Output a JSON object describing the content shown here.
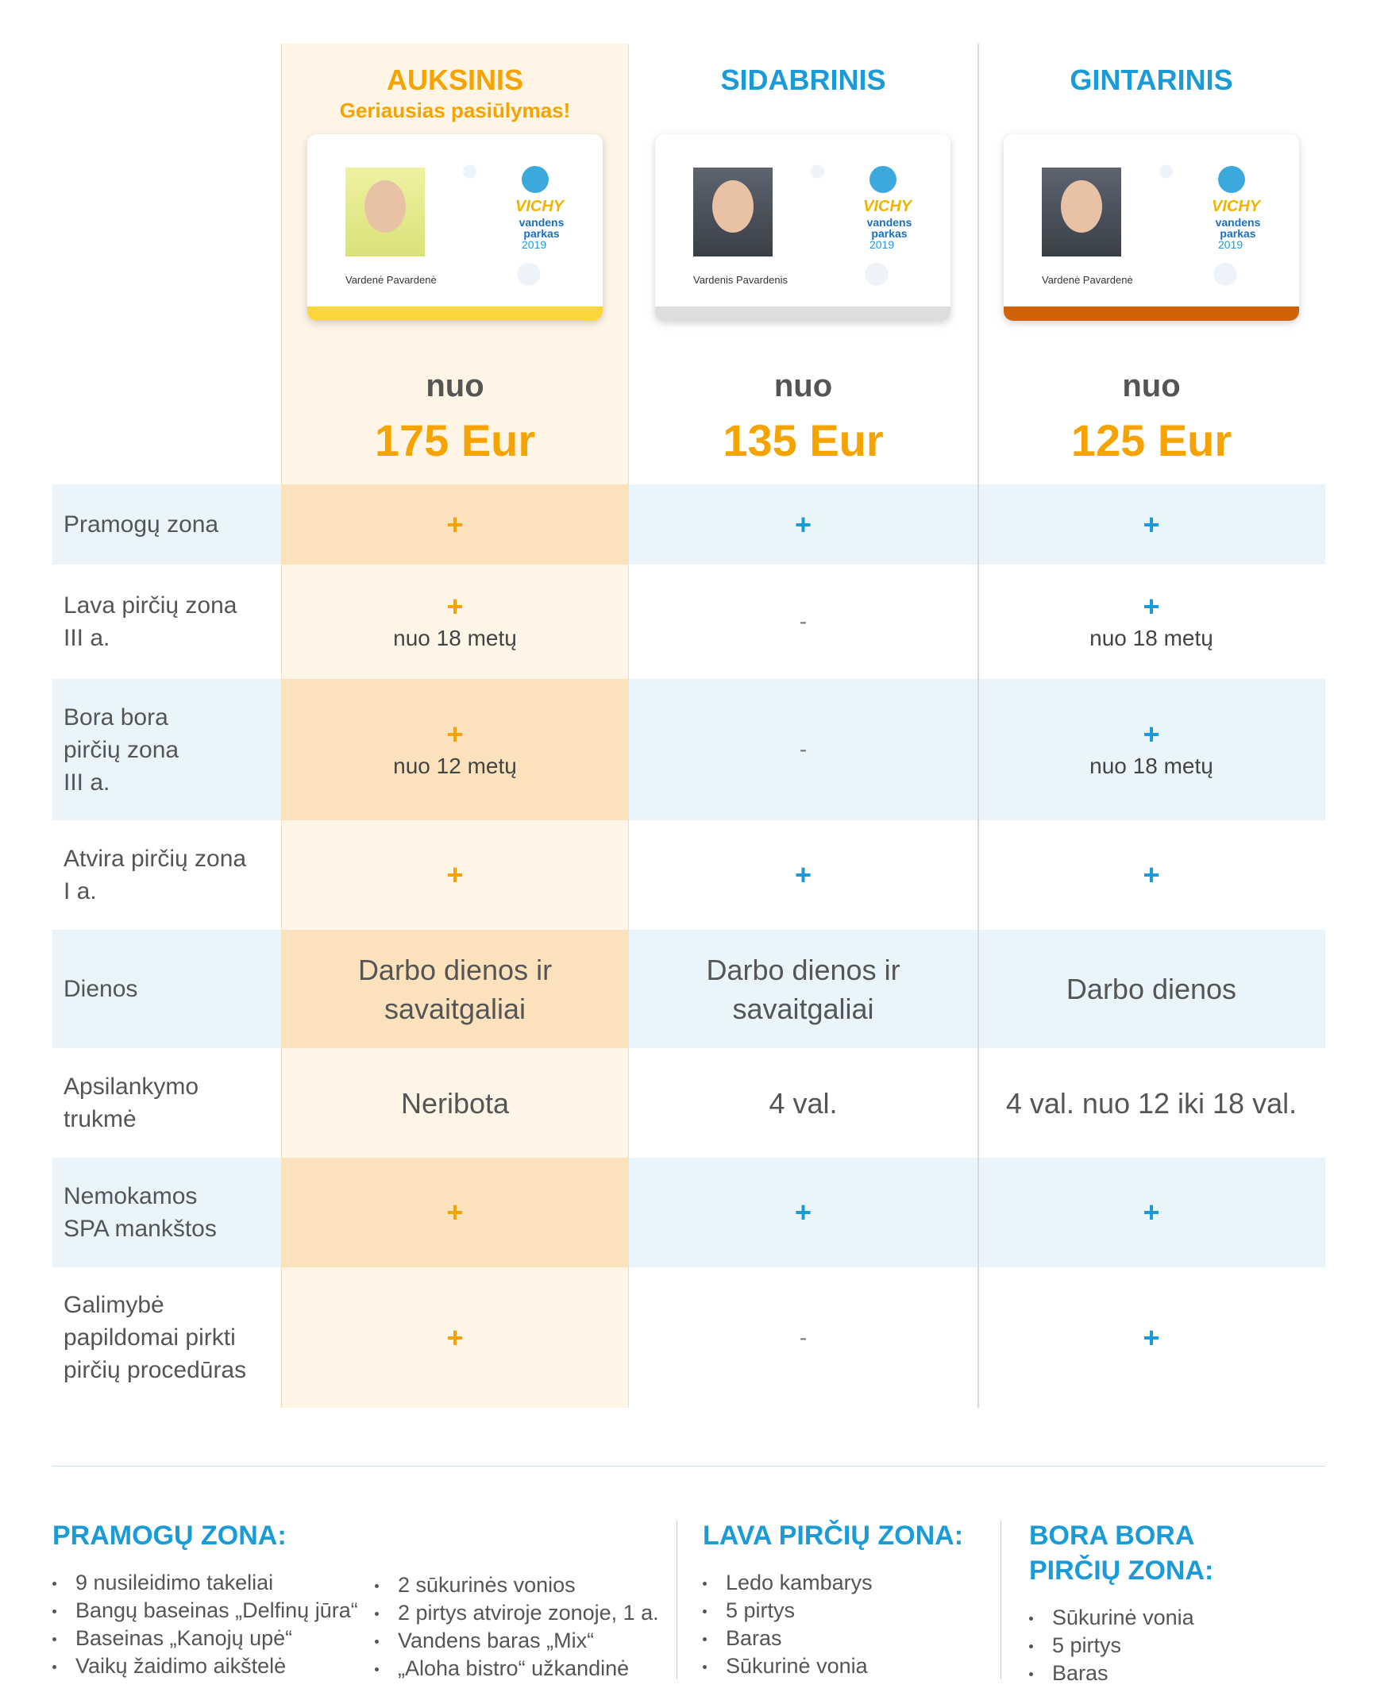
{
  "plans": [
    {
      "name": "AUKSINIS",
      "subtitle": "Geriausias pasiūlymas!",
      "card_name": "Vardenė Pavardenė",
      "price_prefix": "nuo",
      "price": "175 Eur",
      "stripe_color": "#fad53c"
    },
    {
      "name": "SIDABRINIS",
      "card_name": "Vardenis Pavardenis",
      "price_prefix": "nuo",
      "price": "135 Eur",
      "stripe_color": "#dddddd"
    },
    {
      "name": "GINTARINIS",
      "card_name": "Vardenė Pavardenė",
      "price_prefix": "nuo",
      "price": "125 Eur",
      "stripe_color": "#d0620a"
    }
  ],
  "card_logo": {
    "top": "VICHY",
    "bottom": "vandens parkas",
    "year": "2019"
  },
  "rows": [
    {
      "label": [
        "Pramogų zona"
      ],
      "cells": [
        [
          "+"
        ],
        [
          "+"
        ],
        [
          "+"
        ]
      ]
    },
    {
      "label": [
        "Lava pirčių zona",
        "III a."
      ],
      "cells": [
        [
          "+",
          "nuo 18 metų"
        ],
        [
          "-"
        ],
        [
          "+",
          "nuo 18 metų"
        ]
      ]
    },
    {
      "label": [
        "Bora bora",
        "pirčių zona",
        "III a."
      ],
      "cells": [
        [
          "+",
          "nuo 12 metų"
        ],
        [
          "-"
        ],
        [
          "+",
          "nuo 18 metų"
        ]
      ]
    },
    {
      "label": [
        "Atvira pirčių zona",
        "I a."
      ],
      "cells": [
        [
          "+"
        ],
        [
          "+"
        ],
        [
          "+"
        ]
      ]
    },
    {
      "label": [
        "Dienos"
      ],
      "cells": [
        [
          "Darbo dienos ir",
          "savaitgaliai"
        ],
        [
          "Darbo dienos ir",
          "savaitgaliai"
        ],
        [
          "Darbo dienos"
        ]
      ]
    },
    {
      "label": [
        "Apsilankymo",
        "trukmė"
      ],
      "cells": [
        [
          "Neribota"
        ],
        [
          "4 val."
        ],
        [
          "4 val. nuo 12 iki 18 val."
        ]
      ]
    },
    {
      "label": [
        "Nemokamos",
        "SPA mankštos"
      ],
      "cells": [
        [
          "+"
        ],
        [
          "+"
        ],
        [
          "+"
        ]
      ]
    },
    {
      "label": [
        "Galimybė",
        "papildomai pirkti",
        "pirčių procedūras"
      ],
      "cells": [
        [
          "+"
        ],
        [
          "-"
        ],
        [
          "+"
        ]
      ]
    }
  ],
  "zones": [
    {
      "title": [
        "PRAMOGŲ ZONA:"
      ],
      "columns": [
        [
          "9 nusileidimo takeliai",
          "Bangų baseinas „Delfinų jūra“",
          "Baseinas „Kanojų upė“",
          "Vaikų žaidimo aikštelė"
        ],
        [
          "2 sūkurinės vonios",
          "2 pirtys atviroje zonoje, 1 a.",
          "Vandens baras „Mix“",
          "„Aloha bistro“ užkandinė"
        ]
      ]
    },
    {
      "title": [
        "LAVA PIRČIŲ ZONA:"
      ],
      "columns": [
        [
          "Ledo kambarys",
          "5 pirtys",
          "Baras",
          "Sūkurinė vonia"
        ]
      ]
    },
    {
      "title": [
        "BORA BORA",
        "PIRČIŲ ZONA:"
      ],
      "columns": [
        [
          "Sūkurinė vonia",
          "5 pirtys",
          "Baras"
        ]
      ]
    }
  ]
}
